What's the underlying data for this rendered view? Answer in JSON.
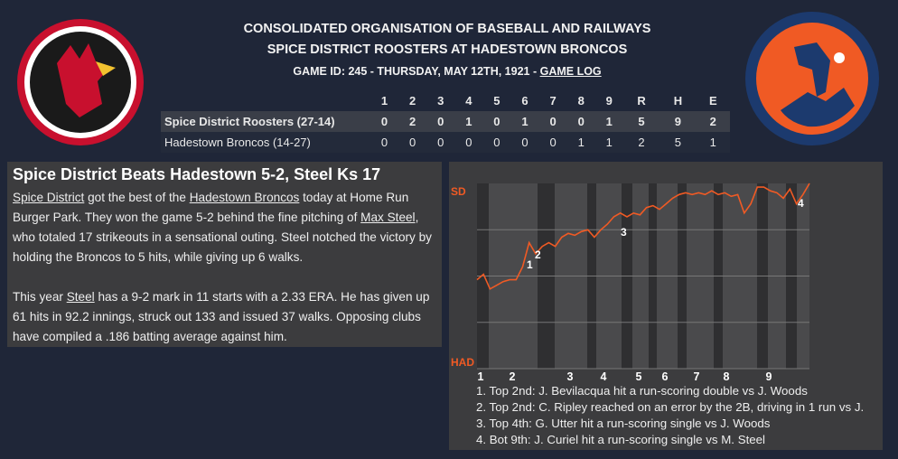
{
  "header": {
    "league": "CONSOLIDATED ORGANISATION OF BASEBALL AND RAILWAYS",
    "matchup": "SPICE DISTRICT ROOSTERS AT HADESTOWN BRONCOS",
    "game_info": "GAME ID: 245 - THURSDAY, MAY 12TH, 1921 - ",
    "game_log_link": "GAME LOG"
  },
  "table": {
    "columns": [
      "",
      "1",
      "2",
      "3",
      "4",
      "5",
      "6",
      "7",
      "8",
      "9",
      "R",
      "H",
      "E"
    ],
    "rows": [
      [
        "Spice District Roosters (27-14)",
        "0",
        "2",
        "0",
        "1",
        "0",
        "1",
        "0",
        "0",
        "1",
        "5",
        "9",
        "2"
      ],
      [
        "Hadestown Broncos (14-27)",
        "0",
        "0",
        "0",
        "0",
        "0",
        "0",
        "0",
        "1",
        "1",
        "2",
        "5",
        "1"
      ]
    ]
  },
  "article": {
    "title": "Spice District Beats Hadestown 5-2, Steel Ks 17",
    "paragraphs": [
      [
        {
          "text": "Spice District",
          "underline": true
        },
        {
          "text": " got the best of the "
        },
        {
          "text": "Hadestown Broncos",
          "underline": true
        },
        {
          "text": " today at Home Run Burger Park. They won the game 5-2 behind the fine pitching of "
        },
        {
          "text": "Max Steel",
          "underline": true
        },
        {
          "text": ", who totaled 17 strikeouts in a sensational outing. Steel notched the victory by holding the Broncos to 5 hits, while giving up 6 walks."
        }
      ],
      [
        {
          "text": "This year "
        },
        {
          "text": "Steel",
          "underline": true
        },
        {
          "text": " has a 9-2 mark in 11 starts with a 2.33 ERA. He has given up 61 hits in 92.2 innings, struck out 133 and issued 37 walks. Opposing clubs have compiled a .186 batting average against him."
        }
      ]
    ]
  },
  "win_chart": {
    "top_label": "SD",
    "bottom_label": "HAD",
    "line_color": "#f05a24",
    "ylim": [
      0,
      100
    ],
    "values": [
      48,
      51,
      43,
      45,
      47,
      48,
      48,
      55,
      68,
      62,
      66,
      68,
      66,
      71,
      73,
      72,
      74,
      75,
      71,
      75,
      78,
      82,
      84,
      82,
      84,
      83,
      87,
      88,
      86,
      89,
      92,
      94,
      95,
      94,
      95,
      94,
      96,
      94,
      95,
      93,
      94,
      84,
      89,
      98,
      98,
      96,
      95,
      92,
      97,
      89,
      94,
      100
    ],
    "innings": [
      "1",
      "2",
      "3",
      "4",
      "5",
      "6",
      "7",
      "8",
      "9"
    ],
    "markers": [
      "1",
      "2",
      "3",
      "4"
    ],
    "notes": [
      "1. Top 2nd: J. Bevilacqua hit a run-scoring double vs J. Woods",
      "2. Top 2nd: C. Ripley reached on an error by the 2B, driving in 1 run vs J.",
      "3. Top 4th: G. Utter hit a run-scoring single vs J. Woods",
      "4. Bot 9th: J. Curiel hit a run-scoring single vs M. Steel"
    ]
  }
}
